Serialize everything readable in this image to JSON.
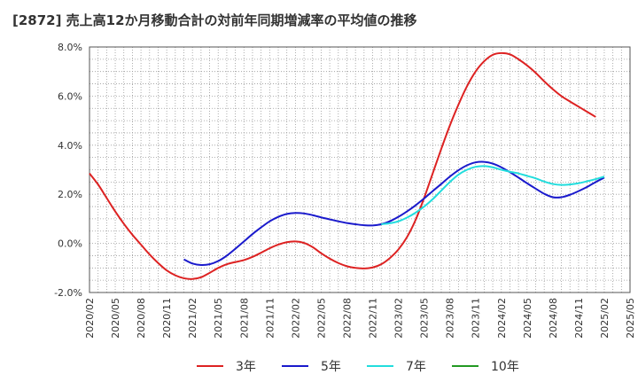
{
  "chart_data": {
    "type": "line",
    "title": "[2872]  売上高12か月移動合計の対前年同期増減率の平均値の推移",
    "ylim": [
      -2.0,
      8.0
    ],
    "y_ticks": [
      "8.0%",
      "6.0%",
      "4.0%",
      "2.0%",
      "0.0%",
      "-2.0%"
    ],
    "y_tick_values": [
      8,
      6,
      4,
      2,
      0,
      -2
    ],
    "x_ticks": [
      "2020/02",
      "2020/05",
      "2020/08",
      "2020/11",
      "2021/02",
      "2021/05",
      "2021/08",
      "2021/11",
      "2022/02",
      "2022/05",
      "2022/08",
      "2022/11",
      "2023/02",
      "2023/05",
      "2023/08",
      "2023/11",
      "2024/02",
      "2024/05",
      "2024/08",
      "2024/11",
      "2025/02",
      "2025/05"
    ],
    "grid": true,
    "legend_position": "bottom",
    "series": [
      {
        "name": "3年",
        "color": "#dd2222",
        "points": [
          [
            "2020/02",
            2.85
          ],
          [
            "2020/03",
            2.4
          ],
          [
            "2020/04",
            1.85
          ],
          [
            "2020/05",
            1.3
          ],
          [
            "2020/06",
            0.8
          ],
          [
            "2020/07",
            0.35
          ],
          [
            "2020/08",
            -0.05
          ],
          [
            "2020/09",
            -0.45
          ],
          [
            "2020/10",
            -0.8
          ],
          [
            "2020/11",
            -1.1
          ],
          [
            "2020/12",
            -1.3
          ],
          [
            "2021/01",
            -1.42
          ],
          [
            "2021/02",
            -1.45
          ],
          [
            "2021/03",
            -1.38
          ],
          [
            "2021/04",
            -1.2
          ],
          [
            "2021/05",
            -1.0
          ],
          [
            "2021/06",
            -0.85
          ],
          [
            "2021/07",
            -0.76
          ],
          [
            "2021/08",
            -0.68
          ],
          [
            "2021/09",
            -0.55
          ],
          [
            "2021/10",
            -0.38
          ],
          [
            "2021/11",
            -0.2
          ],
          [
            "2021/12",
            -0.05
          ],
          [
            "2022/01",
            0.05
          ],
          [
            "2022/02",
            0.08
          ],
          [
            "2022/03",
            0.02
          ],
          [
            "2022/04",
            -0.15
          ],
          [
            "2022/05",
            -0.4
          ],
          [
            "2022/06",
            -0.62
          ],
          [
            "2022/07",
            -0.8
          ],
          [
            "2022/08",
            -0.93
          ],
          [
            "2022/09",
            -1.0
          ],
          [
            "2022/10",
            -1.02
          ],
          [
            "2022/11",
            -0.98
          ],
          [
            "2022/12",
            -0.85
          ],
          [
            "2023/01",
            -0.6
          ],
          [
            "2023/02",
            -0.25
          ],
          [
            "2023/03",
            0.25
          ],
          [
            "2023/04",
            0.95
          ],
          [
            "2023/05",
            1.85
          ],
          [
            "2023/06",
            2.85
          ],
          [
            "2023/07",
            3.85
          ],
          [
            "2023/08",
            4.8
          ],
          [
            "2023/09",
            5.65
          ],
          [
            "2023/10",
            6.4
          ],
          [
            "2023/11",
            7.0
          ],
          [
            "2023/12",
            7.42
          ],
          [
            "2024/01",
            7.68
          ],
          [
            "2024/02",
            7.75
          ],
          [
            "2024/03",
            7.7
          ],
          [
            "2024/04",
            7.5
          ],
          [
            "2024/05",
            7.25
          ],
          [
            "2024/06",
            6.95
          ],
          [
            "2024/07",
            6.6
          ],
          [
            "2024/08",
            6.28
          ],
          [
            "2024/09",
            6.0
          ],
          [
            "2024/10",
            5.78
          ],
          [
            "2024/11",
            5.57
          ],
          [
            "2024/12",
            5.36
          ],
          [
            "2025/01",
            5.15
          ]
        ]
      },
      {
        "name": "5年",
        "color": "#1a1acc",
        "points": [
          [
            "2021/01",
            -0.65
          ],
          [
            "2021/02",
            -0.82
          ],
          [
            "2021/03",
            -0.88
          ],
          [
            "2021/04",
            -0.85
          ],
          [
            "2021/05",
            -0.72
          ],
          [
            "2021/06",
            -0.5
          ],
          [
            "2021/07",
            -0.22
          ],
          [
            "2021/08",
            0.08
          ],
          [
            "2021/09",
            0.38
          ],
          [
            "2021/10",
            0.65
          ],
          [
            "2021/11",
            0.9
          ],
          [
            "2021/12",
            1.08
          ],
          [
            "2022/01",
            1.2
          ],
          [
            "2022/02",
            1.24
          ],
          [
            "2022/03",
            1.22
          ],
          [
            "2022/04",
            1.15
          ],
          [
            "2022/05",
            1.06
          ],
          [
            "2022/06",
            0.98
          ],
          [
            "2022/07",
            0.9
          ],
          [
            "2022/08",
            0.83
          ],
          [
            "2022/09",
            0.78
          ],
          [
            "2022/10",
            0.74
          ],
          [
            "2022/11",
            0.73
          ],
          [
            "2022/12",
            0.78
          ],
          [
            "2023/01",
            0.9
          ],
          [
            "2023/02",
            1.08
          ],
          [
            "2023/03",
            1.3
          ],
          [
            "2023/04",
            1.55
          ],
          [
            "2023/05",
            1.83
          ],
          [
            "2023/06",
            2.13
          ],
          [
            "2023/07",
            2.42
          ],
          [
            "2023/08",
            2.72
          ],
          [
            "2023/09",
            2.98
          ],
          [
            "2023/10",
            3.18
          ],
          [
            "2023/11",
            3.3
          ],
          [
            "2023/12",
            3.32
          ],
          [
            "2024/01",
            3.25
          ],
          [
            "2024/02",
            3.1
          ],
          [
            "2024/03",
            2.9
          ],
          [
            "2024/04",
            2.68
          ],
          [
            "2024/05",
            2.45
          ],
          [
            "2024/06",
            2.23
          ],
          [
            "2024/07",
            2.02
          ],
          [
            "2024/08",
            1.88
          ],
          [
            "2024/09",
            1.88
          ],
          [
            "2024/10",
            1.98
          ],
          [
            "2024/11",
            2.13
          ],
          [
            "2024/12",
            2.3
          ],
          [
            "2025/01",
            2.5
          ],
          [
            "2025/02",
            2.68
          ]
        ]
      },
      {
        "name": "7年",
        "color": "#22dddd",
        "points": [
          [
            "2022/12",
            0.78
          ],
          [
            "2023/01",
            0.82
          ],
          [
            "2023/02",
            0.9
          ],
          [
            "2023/03",
            1.05
          ],
          [
            "2023/04",
            1.25
          ],
          [
            "2023/05",
            1.5
          ],
          [
            "2023/06",
            1.8
          ],
          [
            "2023/07",
            2.15
          ],
          [
            "2023/08",
            2.5
          ],
          [
            "2023/09",
            2.8
          ],
          [
            "2023/10",
            3.0
          ],
          [
            "2023/11",
            3.12
          ],
          [
            "2023/12",
            3.15
          ],
          [
            "2024/01",
            3.1
          ],
          [
            "2024/02",
            3.0
          ],
          [
            "2024/03",
            2.92
          ],
          [
            "2024/04",
            2.85
          ],
          [
            "2024/05",
            2.75
          ],
          [
            "2024/06",
            2.65
          ],
          [
            "2024/07",
            2.52
          ],
          [
            "2024/08",
            2.42
          ],
          [
            "2024/09",
            2.38
          ],
          [
            "2024/10",
            2.4
          ],
          [
            "2024/11",
            2.45
          ],
          [
            "2024/12",
            2.53
          ],
          [
            "2025/01",
            2.62
          ],
          [
            "2025/02",
            2.72
          ]
        ]
      },
      {
        "name": "10年",
        "color": "#229922",
        "points": []
      }
    ]
  }
}
